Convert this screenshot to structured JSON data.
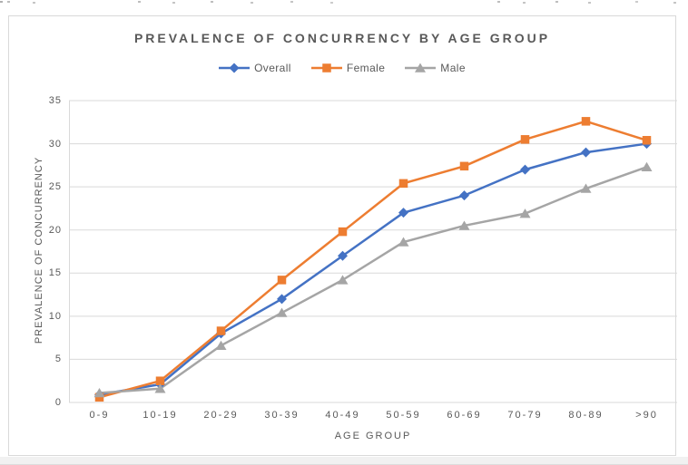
{
  "chart_data": {
    "type": "line",
    "title": "PREVALENCE OF CONCURRENCY BY AGE GROUP",
    "categories": [
      "0-9",
      "10-19",
      "20-29",
      "30-39",
      "40-49",
      "50-59",
      "60-69",
      "70-79",
      "80-89",
      ">90"
    ],
    "series": [
      {
        "name": "Overall",
        "marker": "diamond",
        "color": "#4472C4",
        "values": [
          0.9,
          2.1,
          8,
          12,
          17,
          22,
          24,
          27,
          29,
          30
        ]
      },
      {
        "name": "Female",
        "marker": "square",
        "color": "#ED7D31",
        "values": [
          0.6,
          2.5,
          8.3,
          14.2,
          19.8,
          25.4,
          27.4,
          30.5,
          32.6,
          30.4
        ]
      },
      {
        "name": "Male",
        "marker": "triangle",
        "color": "#A5A5A5",
        "values": [
          1.1,
          1.6,
          6.6,
          10.4,
          14.2,
          18.6,
          20.5,
          21.9,
          24.8,
          27.3
        ]
      }
    ],
    "xlabel": "AGE GROUP",
    "ylabel": "PREVALENCE OF CONCURRENCY",
    "ylim": [
      0,
      35
    ],
    "yticks": [
      0,
      5,
      10,
      15,
      20,
      25,
      30,
      35
    ],
    "grid": "horizontal",
    "legend_position": "top",
    "colors": {
      "gridline": "#d9d9d9",
      "text": "#595959",
      "background": "#ffffff"
    }
  }
}
